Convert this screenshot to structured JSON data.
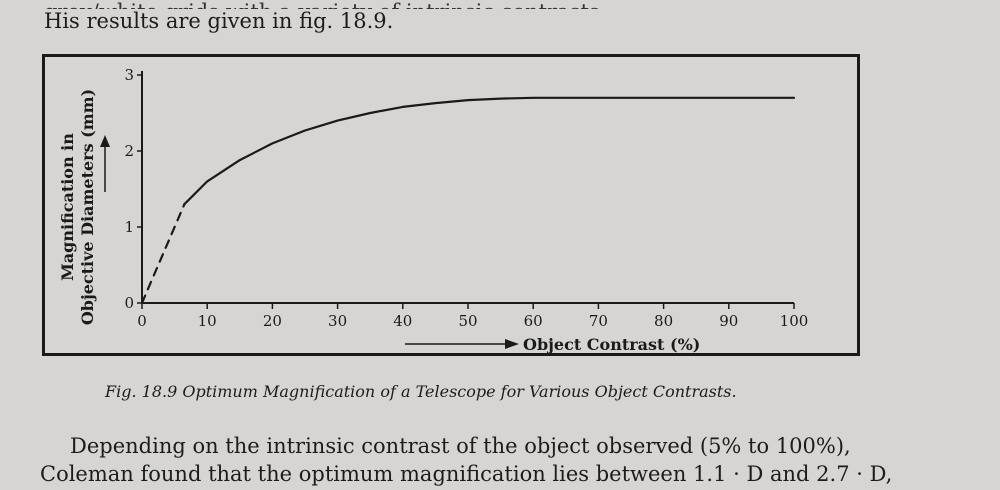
{
  "page": {
    "top_line_fragment": "grey/white grids with a variety of intrinsic contrasts.",
    "top_line": "His results are given in fig. 18.9.",
    "caption": "Fig. 18.9 Optimum Magnification of a Telescope for Various Object Contrasts.",
    "para_line1": "Depending on the intrinsic contrast of the object observed (5% to 100%),",
    "para_line2": "Coleman found that the optimum magnification lies between 1.1 · D and 2.7 · D,"
  },
  "chart_data": {
    "type": "line",
    "title": "",
    "xlabel": "Object Contrast (%)",
    "ylabel_line1": "Magnification in",
    "ylabel_line2": "Objective Diameters (mm)",
    "xlim": [
      0,
      100
    ],
    "ylim": [
      0,
      3
    ],
    "xticks": [
      "0",
      "10",
      "20",
      "30",
      "40",
      "50",
      "60",
      "70",
      "80",
      "90",
      "100"
    ],
    "yticks": [
      "0",
      "1",
      "2",
      "3"
    ],
    "grid": false,
    "series": [
      {
        "style": "dashed",
        "x": [
          0,
          2,
          4,
          6.5
        ],
        "y": [
          0,
          0.4,
          0.8,
          1.3
        ]
      },
      {
        "style": "solid",
        "x": [
          6.5,
          10,
          15,
          20,
          25,
          30,
          35,
          40,
          45,
          50,
          55,
          60,
          70,
          80,
          90,
          100
        ],
        "y": [
          1.3,
          1.6,
          1.88,
          2.1,
          2.27,
          2.4,
          2.5,
          2.58,
          2.63,
          2.67,
          2.69,
          2.7,
          2.7,
          2.7,
          2.7,
          2.7
        ]
      }
    ]
  }
}
